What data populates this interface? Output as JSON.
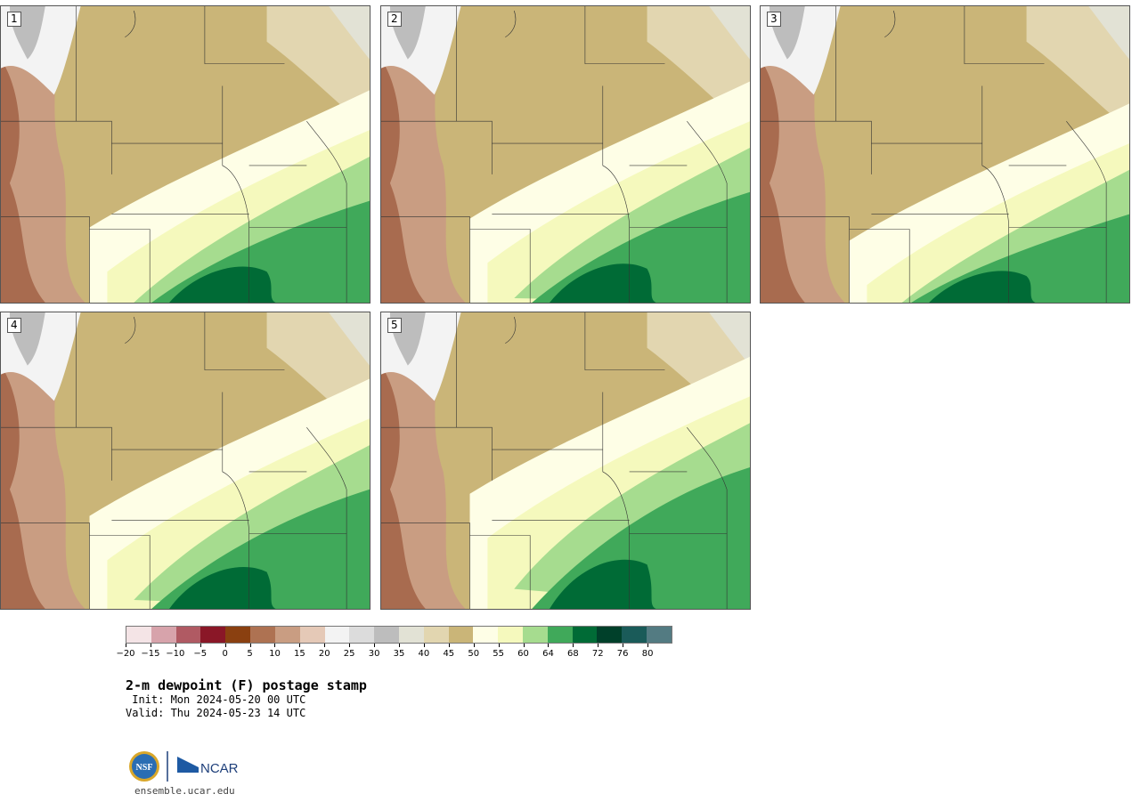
{
  "panels": [
    {
      "label": "1"
    },
    {
      "label": "2"
    },
    {
      "label": "3"
    },
    {
      "label": "4"
    },
    {
      "label": "5"
    }
  ],
  "colorbar": {
    "colors": [
      "#f4e4e6",
      "#d7a3ab",
      "#b05a63",
      "#8a1727",
      "#8a4010",
      "#ae7252",
      "#c99d82",
      "#e5c9b7",
      "#f3f3f3",
      "#dcdcdc",
      "#bdbdbd",
      "#e2e2d5",
      "#e2d6b0",
      "#cab578",
      "#fefee6",
      "#f5f9bd",
      "#a6dc8f",
      "#40a95a",
      "#006b36",
      "#00402a",
      "#1a5b59",
      "#537b82"
    ],
    "ticks": [
      "-20",
      "-15",
      "-10",
      "-5",
      "0",
      "5",
      "10",
      "15",
      "20",
      "25",
      "30",
      "35",
      "40",
      "45",
      "50",
      "55",
      "60",
      "64",
      "68",
      "72",
      "76",
      "80"
    ]
  },
  "title": "2-m dewpoint (F) postage stamp",
  "init": " Init: Mon 2024-05-20 00 UTC",
  "valid": "Valid: Thu 2024-05-23 14 UTC",
  "logos": {
    "nsf": "NSF",
    "ncar": "NCAR"
  },
  "url": "ensemble.ucar.edu"
}
